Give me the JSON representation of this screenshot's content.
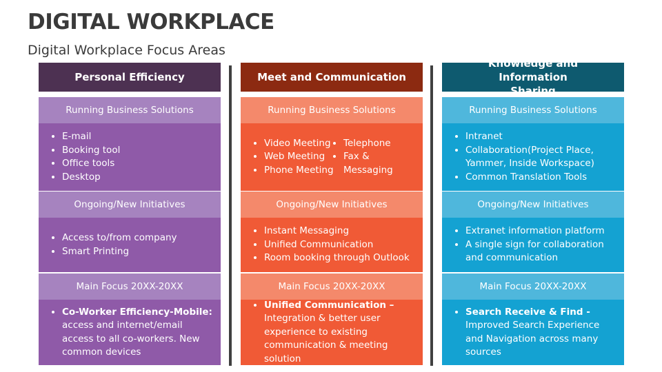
{
  "header": {
    "title": "DIGITAL WORKPLACE",
    "subtitle": "Digital Workplace Focus Areas"
  },
  "columns": [
    {
      "heading": "Personal Efficiency",
      "sections": [
        {
          "label": "Running Business Solutions",
          "items": [
            "E-mail",
            "Booking tool",
            "Office tools",
            "Desktop"
          ]
        },
        {
          "label": "Ongoing/New Initiatives",
          "items": [
            "Access to/from company",
            "Smart Printing"
          ]
        },
        {
          "label": "Main Focus 20XX-20XX",
          "items": [
            {
              "bold": "Co-Worker Efficiency-Mobile:",
              "text": "access and internet/email access to all co-workers. New common devices"
            }
          ]
        }
      ]
    },
    {
      "heading": "Meet and Communication",
      "sections": [
        {
          "label": "Running Business Solutions",
          "items": [
            "Video Meeting",
            "Web Meeting",
            "Phone Meeting",
            "Telephone",
            "Fax & Messaging"
          ]
        },
        {
          "label": "Ongoing/New Initiatives",
          "items": [
            "Instant Messaging",
            "Unified Communication",
            "Room booking through Outlook"
          ]
        },
        {
          "label": "Main Focus 20XX-20XX",
          "items": [
            {
              "bold": "Unified Communication –",
              "text": "Integration & better user experience to existing communication & meeting solution"
            }
          ]
        }
      ]
    },
    {
      "heading": "Knowledge and Information Sharing",
      "sections": [
        {
          "label": "Running Business Solutions",
          "items": [
            "Intranet",
            "Collaboration(Project Place, Yammer, Inside Workspace)",
            "Common Translation Tools"
          ]
        },
        {
          "label": "Ongoing/New Initiatives",
          "items": [
            "Extranet information platform",
            "A single sign for collaboration and communication"
          ]
        },
        {
          "label": "Main Focus 20XX-20XX",
          "items": [
            {
              "bold": "Search Receive & Find -",
              "text": "Improved Search Experience and Navigation across many sources"
            }
          ]
        }
      ]
    }
  ]
}
